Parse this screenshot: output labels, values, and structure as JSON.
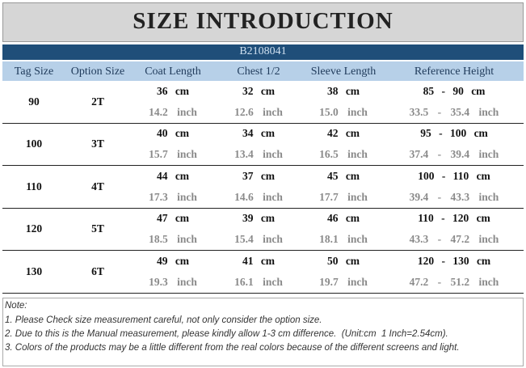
{
  "header": {
    "title": "SIZE INTRODUCTION",
    "code": "B2108041"
  },
  "table": {
    "columns": [
      "Tag Size",
      "Option Size",
      "Coat Length",
      "Chest 1/2",
      "Sleeve Length",
      "Reference Height"
    ],
    "rows": [
      {
        "tag": "90",
        "option": "2T",
        "cm": [
          "36 cm",
          "32 cm",
          "38 cm",
          "85 - 90 cm"
        ],
        "inch": [
          "14.2 inch",
          "12.6 inch",
          "15.0 inch",
          "33.5 - 35.4 inch"
        ]
      },
      {
        "tag": "100",
        "option": "3T",
        "cm": [
          "40 cm",
          "34 cm",
          "42 cm",
          "95 - 100 cm"
        ],
        "inch": [
          "15.7 inch",
          "13.4 inch",
          "16.5 inch",
          "37.4 - 39.4 inch"
        ]
      },
      {
        "tag": "110",
        "option": "4T",
        "cm": [
          "44 cm",
          "37 cm",
          "45 cm",
          "100 - 110 cm"
        ],
        "inch": [
          "17.3 inch",
          "14.6 inch",
          "17.7 inch",
          "39.4 - 43.3 inch"
        ]
      },
      {
        "tag": "120",
        "option": "5T",
        "cm": [
          "47 cm",
          "39 cm",
          "46 cm",
          "110 - 120 cm"
        ],
        "inch": [
          "18.5 inch",
          "15.4 inch",
          "18.1 inch",
          "43.3 - 47.2 inch"
        ]
      },
      {
        "tag": "130",
        "option": "6T",
        "cm": [
          "49 cm",
          "41 cm",
          "50 cm",
          "120 - 130 cm"
        ],
        "inch": [
          "19.3 inch",
          "16.1 inch",
          "19.7 inch",
          "47.2 - 51.2 inch"
        ]
      }
    ]
  },
  "notes": [
    "Note:",
    "1. Please Check size measurement careful, not only consider the option size.",
    "2. Due to this is the Manual measurement, please kindly allow 1-3 cm difference.  (Unit:cm  1 Inch=2.54cm).",
    "3. Colors of the products may be a little different from the real colors because of the different screens and light."
  ]
}
